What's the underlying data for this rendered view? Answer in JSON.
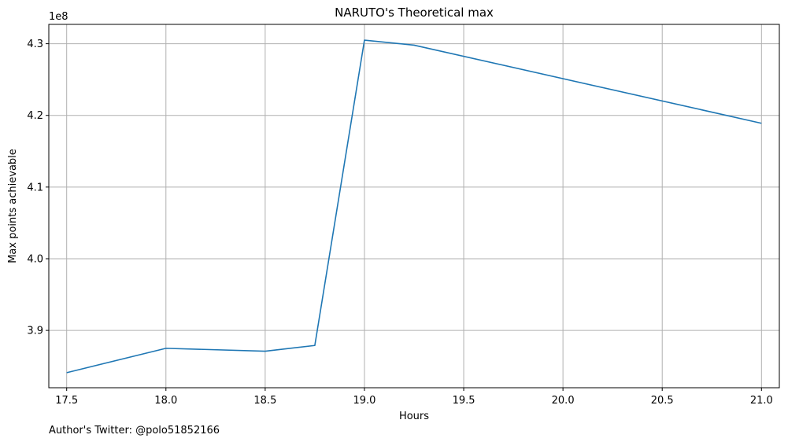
{
  "chart_data": {
    "type": "line",
    "title": "NARUTO's Theoretical max",
    "xlabel": "Hours",
    "ylabel": "Max points achievable",
    "y_scale_label": "1e8",
    "xlim": [
      17.41,
      21.09
    ],
    "ylim": [
      382000000,
      432700000
    ],
    "grid": true,
    "x_ticks": [
      17.5,
      18.0,
      18.5,
      19.0,
      19.5,
      20.0,
      20.5,
      21.0
    ],
    "x_tick_labels": [
      "17.5",
      "18.0",
      "18.5",
      "19.0",
      "19.5",
      "20.0",
      "20.5",
      "21.0"
    ],
    "y_ticks": [
      390000000,
      400000000,
      410000000,
      420000000,
      430000000
    ],
    "y_tick_labels": [
      "3.9",
      "4.0",
      "4.1",
      "4.2",
      "4.3"
    ],
    "series": [
      {
        "color": "#1f77b4",
        "x": [
          17.5,
          18.0,
          18.5,
          18.75,
          19.0,
          19.25,
          21.0
        ],
        "y": [
          384100000,
          387500000,
          387100000,
          387900000,
          430500000,
          429800000,
          418900000
        ]
      }
    ]
  },
  "footer": {
    "credit": "Author's Twitter: @polo51852166"
  }
}
